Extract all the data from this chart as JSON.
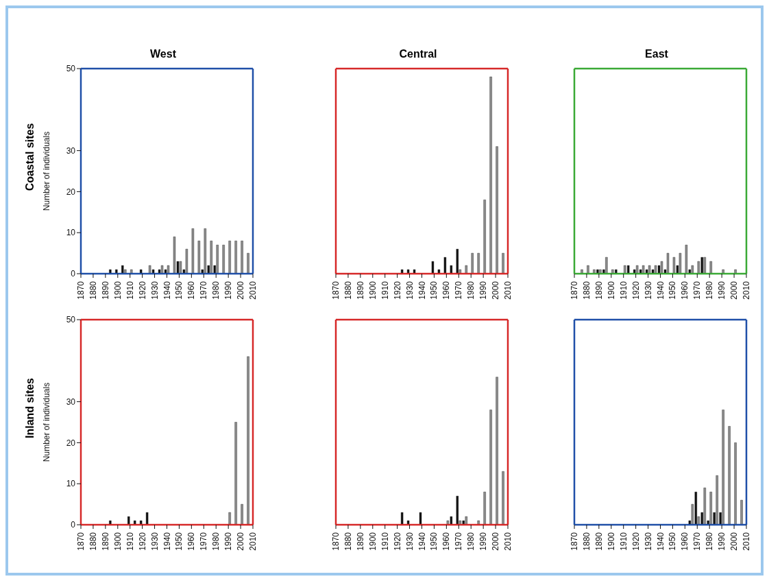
{
  "chart_data": [
    {
      "type": "bar",
      "title": "West",
      "ylabel": "Number of individuals",
      "annotations": [
        "Coastal sites"
      ],
      "xlim": [
        1870,
        2010
      ],
      "xticks": [
        1870,
        1880,
        1890,
        1900,
        1910,
        1920,
        1930,
        1940,
        1950,
        1960,
        1970,
        1980,
        1990,
        2000,
        2010
      ],
      "ylim": [
        0,
        50
      ],
      "yticks": [
        0,
        10,
        20,
        30,
        50
      ],
      "series": [
        {
          "color": "#111111",
          "x": [
            1895,
            1900,
            1905,
            1920,
            1930,
            1935,
            1940,
            1950,
            1955,
            1970,
            1975,
            1980
          ],
          "values": [
            1,
            1,
            2,
            1,
            1,
            1,
            1,
            3,
            1,
            1,
            2,
            2
          ]
        },
        {
          "color": "#8c8c8c",
          "x": [
            1905,
            1910,
            1925,
            1935,
            1940,
            1945,
            1950,
            1955,
            1960,
            1965,
            1970,
            1975,
            1980,
            1985,
            1990,
            1995,
            2000,
            2005
          ],
          "values": [
            1,
            1,
            2,
            2,
            2,
            9,
            3,
            6,
            11,
            8,
            11,
            8,
            7,
            7,
            8,
            8,
            8,
            5
          ]
        }
      ]
    },
    {
      "type": "bar",
      "title": "Central",
      "xlim": [
        1870,
        2010
      ],
      "xticks": [
        1870,
        1880,
        1890,
        1900,
        1910,
        1920,
        1930,
        1940,
        1950,
        1960,
        1970,
        1980,
        1990,
        2000,
        2010
      ],
      "ylim": [
        0,
        50
      ],
      "yticks": [
        0,
        10,
        20,
        30,
        50
      ],
      "tick_labels": "x",
      "series": [
        {
          "color": "#111111",
          "x": [
            1925,
            1930,
            1935,
            1950,
            1955,
            1960,
            1965,
            1970
          ],
          "values": [
            1,
            1,
            1,
            3,
            1,
            4,
            2,
            6
          ]
        },
        {
          "color": "#8c8c8c",
          "x": [
            1970,
            1975,
            1980,
            1985,
            1990,
            1995,
            2000,
            2005
          ],
          "values": [
            1,
            2,
            5,
            5,
            18,
            48,
            31,
            5
          ]
        }
      ]
    },
    {
      "type": "bar",
      "title": "East",
      "xlim": [
        1870,
        2010
      ],
      "xticks": [
        1870,
        1880,
        1890,
        1900,
        1910,
        1920,
        1930,
        1940,
        1950,
        1960,
        1970,
        1980,
        1990,
        2000,
        2010
      ],
      "ylim": [
        0,
        50
      ],
      "yticks": [
        0,
        10,
        20,
        30,
        50
      ],
      "tick_labels": "x",
      "series": [
        {
          "color": "#111111",
          "x": [
            1890,
            1895,
            1905,
            1915,
            1920,
            1925,
            1930,
            1935,
            1940,
            1945,
            1955,
            1965,
            1975
          ],
          "values": [
            1,
            1,
            1,
            2,
            1,
            1,
            1,
            1,
            2,
            1,
            2,
            1,
            4
          ]
        },
        {
          "color": "#8c8c8c",
          "x": [
            1875,
            1880,
            1885,
            1890,
            1895,
            1900,
            1910,
            1920,
            1925,
            1930,
            1935,
            1940,
            1945,
            1950,
            1955,
            1960,
            1965,
            1970,
            1975,
            1980,
            1990,
            2000
          ],
          "values": [
            1,
            2,
            1,
            1,
            4,
            1,
            2,
            2,
            2,
            2,
            2,
            3,
            5,
            4,
            5,
            7,
            2,
            3,
            4,
            3,
            1,
            1
          ]
        }
      ]
    },
    {
      "type": "bar",
      "ylabel": "Number of individuals",
      "annotations": [
        "Inland sites"
      ],
      "xlim": [
        1870,
        2010
      ],
      "xticks": [
        1870,
        1880,
        1890,
        1900,
        1910,
        1920,
        1930,
        1940,
        1950,
        1960,
        1970,
        1980,
        1990,
        2000,
        2010
      ],
      "ylim": [
        0,
        50
      ],
      "yticks": [
        0,
        10,
        20,
        30,
        50
      ],
      "series": [
        {
          "color": "#111111",
          "x": [
            1895,
            1910,
            1915,
            1920,
            1925
          ],
          "values": [
            1,
            2,
            1,
            1,
            3
          ]
        },
        {
          "color": "#8c8c8c",
          "x": [
            1990,
            1995,
            2000,
            2005
          ],
          "values": [
            3,
            25,
            5,
            41
          ]
        }
      ]
    },
    {
      "type": "bar",
      "xlim": [
        1870,
        2010
      ],
      "xticks": [
        1870,
        1880,
        1890,
        1900,
        1910,
        1920,
        1930,
        1940,
        1950,
        1960,
        1970,
        1980,
        1990,
        2000,
        2010
      ],
      "ylim": [
        0,
        50
      ],
      "yticks": [
        0,
        10,
        20,
        30,
        50
      ],
      "tick_labels": "x",
      "series": [
        {
          "color": "#111111",
          "x": [
            1925,
            1930,
            1940,
            1965,
            1970,
            1975
          ],
          "values": [
            3,
            1,
            3,
            2,
            7,
            1
          ]
        },
        {
          "color": "#8c8c8c",
          "x": [
            1960,
            1970,
            1975,
            1985,
            1990,
            1995,
            2000,
            2005
          ],
          "values": [
            1,
            1,
            2,
            1,
            8,
            28,
            36,
            13
          ]
        }
      ]
    },
    {
      "type": "bar",
      "xlim": [
        1870,
        2010
      ],
      "xticks": [
        1870,
        1880,
        1890,
        1900,
        1910,
        1920,
        1930,
        1940,
        1950,
        1960,
        1970,
        1980,
        1990,
        2000,
        2010
      ],
      "ylim": [
        0,
        50
      ],
      "yticks": [
        0,
        10,
        20,
        30,
        50
      ],
      "tick_labels": "x",
      "series": [
        {
          "color": "#111111",
          "x": [
            1965,
            1970,
            1975,
            1980,
            1985,
            1990
          ],
          "values": [
            1,
            8,
            3,
            1,
            3,
            3
          ]
        },
        {
          "color": "#8c8c8c",
          "x": [
            1965,
            1970,
            1975,
            1980,
            1985,
            1990,
            1995,
            2000,
            2005
          ],
          "values": [
            5,
            2,
            9,
            8,
            12,
            28,
            24,
            20,
            6
          ]
        }
      ]
    }
  ]
}
